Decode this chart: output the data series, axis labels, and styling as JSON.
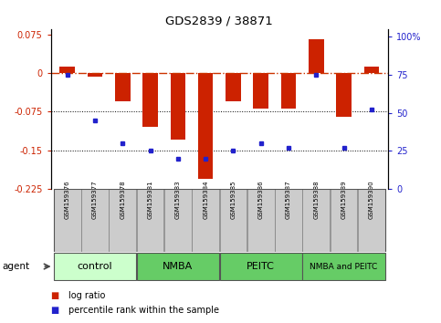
{
  "title": "GDS2839 / 38871",
  "samples": [
    "GSM159376",
    "GSM159377",
    "GSM159378",
    "GSM159381",
    "GSM159383",
    "GSM159384",
    "GSM159385",
    "GSM159386",
    "GSM159387",
    "GSM159388",
    "GSM159389",
    "GSM159390"
  ],
  "log_ratio": [
    0.012,
    -0.008,
    -0.055,
    -0.105,
    -0.13,
    -0.205,
    -0.055,
    -0.07,
    -0.07,
    0.065,
    -0.085,
    0.012
  ],
  "pct_rank": [
    75,
    45,
    30,
    25,
    20,
    20,
    25,
    30,
    27,
    75,
    27,
    52
  ],
  "ylim_left": [
    -0.225,
    0.085
  ],
  "ylim_right": [
    0,
    105
  ],
  "yticks_left": [
    0.075,
    0.0,
    -0.075,
    -0.15,
    -0.225
  ],
  "yticks_right": [
    100,
    75,
    50,
    25,
    0
  ],
  "bar_color": "#cc2200",
  "dot_color": "#2222cc",
  "hline_color": "#cc3300",
  "dotline_color": "#000000",
  "bar_width": 0.55,
  "group_labels": [
    "control",
    "NMBA",
    "PEITC",
    "NMBA and PEITC"
  ],
  "group_colors": [
    "#ccffcc",
    "#66cc66",
    "#66cc66",
    "#66cc66"
  ],
  "group_ranges": [
    [
      0,
      3
    ],
    [
      3,
      6
    ],
    [
      6,
      9
    ],
    [
      9,
      12
    ]
  ],
  "legend_items": [
    {
      "label": "log ratio",
      "color": "#cc2200"
    },
    {
      "label": "percentile rank within the sample",
      "color": "#2222cc"
    }
  ]
}
